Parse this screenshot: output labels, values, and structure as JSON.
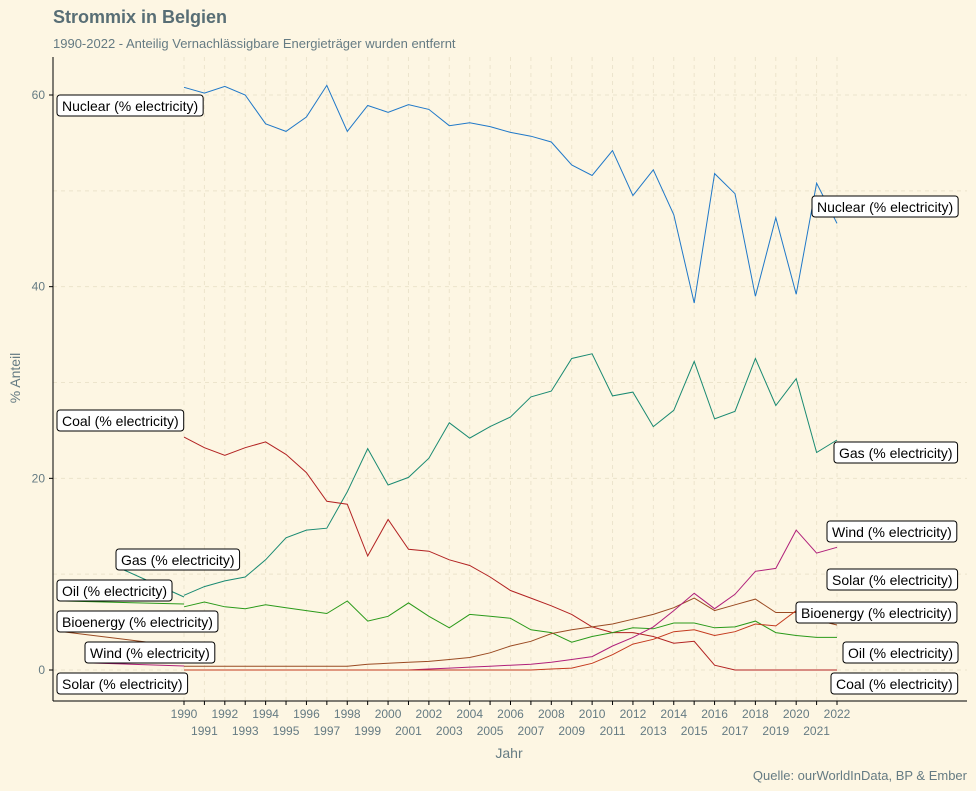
{
  "chart_data": {
    "type": "line",
    "title": "Strommix in Belgien",
    "subtitle": "1990-2022 - Anteilig Vernachlässigbare Energieträger wurden entfernt",
    "caption": "Quelle: ourWorldInData, BP & Ember",
    "xlabel": "Jahr",
    "ylabel": "% Anteil",
    "xlim": [
      1990,
      2022
    ],
    "ylim": [
      0,
      62
    ],
    "yticks": [
      0,
      20,
      40,
      60
    ],
    "grid": true,
    "legend": "none",
    "x": [
      1990,
      1991,
      1992,
      1993,
      1994,
      1995,
      1996,
      1997,
      1998,
      1999,
      2000,
      2001,
      2002,
      2003,
      2004,
      2005,
      2006,
      2007,
      2008,
      2009,
      2010,
      2011,
      2012,
      2013,
      2014,
      2015,
      2016,
      2017,
      2018,
      2019,
      2020,
      2021,
      2022
    ],
    "series": [
      {
        "name": "Nuclear (% electricity)",
        "color": "#1f78c8",
        "values": [
          60.8,
          60.2,
          60.9,
          60.0,
          57.0,
          56.2,
          57.7,
          61.0,
          56.2,
          58.9,
          58.2,
          59.0,
          58.5,
          56.8,
          57.1,
          56.7,
          56.1,
          55.7,
          55.1,
          52.7,
          51.6,
          54.2,
          49.5,
          52.2,
          47.5,
          38.3,
          51.8,
          49.7,
          39.0,
          47.2,
          39.2,
          50.8,
          46.6
        ]
      },
      {
        "name": "Gas (% electricity)",
        "color": "#1a8a72",
        "values": [
          7.8,
          8.7,
          9.3,
          9.7,
          11.5,
          13.8,
          14.6,
          14.8,
          18.6,
          23.1,
          19.3,
          20.1,
          22.1,
          25.8,
          24.2,
          25.4,
          26.4,
          28.5,
          29.1,
          32.5,
          33.0,
          28.6,
          29.0,
          25.4,
          27.1,
          32.2,
          26.2,
          27.0,
          32.5,
          27.6,
          30.4,
          22.7,
          24.0
        ]
      },
      {
        "name": "Coal (% electricity)",
        "color": "#b22222",
        "values": [
          24.3,
          23.2,
          22.4,
          23.2,
          23.8,
          22.5,
          20.6,
          17.6,
          17.3,
          11.9,
          15.7,
          12.6,
          12.4,
          11.5,
          10.9,
          9.7,
          8.3,
          7.5,
          6.7,
          5.8,
          4.5,
          3.9,
          3.9,
          3.5,
          2.8,
          3.0,
          0.5,
          0.0,
          0.0,
          0.0,
          0.0,
          0.0,
          0.0
        ]
      },
      {
        "name": "Oil (% electricity)",
        "color": "#2a9a1a",
        "values": [
          6.6,
          7.1,
          6.6,
          6.4,
          6.8,
          6.5,
          6.2,
          5.9,
          7.2,
          5.1,
          5.6,
          7.0,
          5.6,
          4.4,
          5.8,
          5.6,
          5.4,
          4.2,
          3.9,
          2.9,
          3.5,
          3.9,
          4.4,
          4.3,
          4.9,
          4.9,
          4.4,
          4.5,
          5.1,
          3.9,
          3.6,
          3.4,
          3.4
        ]
      },
      {
        "name": "Bioenergy (% electricity)",
        "color": "#9a4a22",
        "values": [
          0.4,
          0.4,
          0.4,
          0.4,
          0.4,
          0.4,
          0.4,
          0.4,
          0.4,
          0.6,
          0.7,
          0.8,
          0.9,
          1.1,
          1.3,
          1.8,
          2.5,
          3.0,
          3.8,
          4.2,
          4.5,
          4.8,
          5.3,
          5.8,
          6.5,
          7.5,
          6.2,
          6.8,
          7.4,
          6.0,
          6.0,
          5.2,
          4.7
        ]
      },
      {
        "name": "Wind (% electricity)",
        "color": "#b0207a",
        "values": [
          0.0,
          0.0,
          0.0,
          0.0,
          0.0,
          0.0,
          0.0,
          0.0,
          0.0,
          0.0,
          0.0,
          0.0,
          0.1,
          0.2,
          0.3,
          0.4,
          0.5,
          0.6,
          0.8,
          1.1,
          1.4,
          2.5,
          3.4,
          4.5,
          6.2,
          8.0,
          6.4,
          7.9,
          10.3,
          10.6,
          14.6,
          12.2,
          12.8
        ]
      },
      {
        "name": "Solar (% electricity)",
        "color": "#c43a1e",
        "values": [
          0.0,
          0.0,
          0.0,
          0.0,
          0.0,
          0.0,
          0.0,
          0.0,
          0.0,
          0.0,
          0.0,
          0.0,
          0.0,
          0.0,
          0.0,
          0.0,
          0.0,
          0.0,
          0.1,
          0.2,
          0.7,
          1.6,
          2.7,
          3.2,
          4.0,
          4.2,
          3.6,
          4.0,
          4.8,
          4.6,
          6.2,
          5.2,
          6.3
        ]
      }
    ],
    "labels_left": [
      {
        "text": "Nuclear (% electricity)"
      },
      {
        "text": "Coal (% electricity)"
      },
      {
        "text": "Gas (% electricity)"
      },
      {
        "text": "Oil (% electricity)"
      },
      {
        "text": "Bioenergy (% electricity)"
      },
      {
        "text": "Wind (% electricity)"
      },
      {
        "text": "Solar (% electricity)"
      }
    ],
    "labels_right": [
      {
        "text": "Nuclear (% electricity)"
      },
      {
        "text": "Gas (% electricity)"
      },
      {
        "text": "Wind (% electricity)"
      },
      {
        "text": "Solar (% electricity)"
      },
      {
        "text": "Bioenergy (% electricity)"
      },
      {
        "text": "Oil (% electricity)"
      },
      {
        "text": "Coal (% electricity)"
      }
    ]
  }
}
